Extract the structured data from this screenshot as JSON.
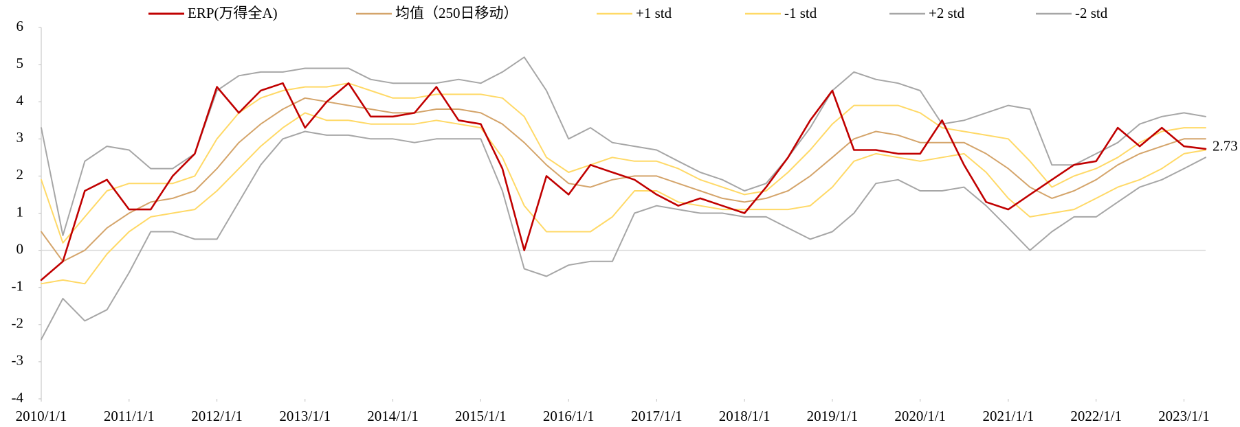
{
  "chart_data": {
    "type": "line",
    "legend": "top",
    "x": [
      "2010/1/1",
      "2010/4/1",
      "2010/7/1",
      "2010/10/1",
      "2011/1/1",
      "2011/4/1",
      "2011/7/1",
      "2011/10/1",
      "2012/1/1",
      "2012/4/1",
      "2012/7/1",
      "2012/10/1",
      "2013/1/1",
      "2013/4/1",
      "2013/7/1",
      "2013/10/1",
      "2014/1/1",
      "2014/4/1",
      "2014/7/1",
      "2014/10/1",
      "2015/1/1",
      "2015/4/1",
      "2015/7/1",
      "2015/10/1",
      "2016/1/1",
      "2016/4/1",
      "2016/7/1",
      "2016/10/1",
      "2017/1/1",
      "2017/4/1",
      "2017/7/1",
      "2017/10/1",
      "2018/1/1",
      "2018/4/1",
      "2018/7/1",
      "2018/10/1",
      "2019/1/1",
      "2019/4/1",
      "2019/7/1",
      "2019/10/1",
      "2020/1/1",
      "2020/4/1",
      "2020/7/1",
      "2020/10/1",
      "2021/1/1",
      "2021/4/1",
      "2021/7/1",
      "2021/10/1",
      "2022/1/1",
      "2022/4/1",
      "2022/7/1",
      "2022/10/1",
      "2023/1/1",
      "2023/4/1"
    ],
    "xlim": [
      "2010/1/1",
      "2023/4/1"
    ],
    "xticks": [
      "2010/1/1",
      "2011/1/1",
      "2012/1/1",
      "2013/1/1",
      "2014/1/1",
      "2015/1/1",
      "2016/1/1",
      "2017/1/1",
      "2018/1/1",
      "2019/1/1",
      "2020/1/1",
      "2021/1/1",
      "2022/1/1",
      "2023/1/1"
    ],
    "ylim": [
      -4,
      6
    ],
    "yticks": [
      -4,
      -3,
      -2,
      -1,
      0,
      1,
      2,
      3,
      4,
      5,
      6
    ],
    "series": [
      {
        "name": "ERP(万得全A)",
        "color": "#C00000",
        "values": [
          -0.8,
          -0.3,
          1.6,
          1.9,
          1.1,
          1.1,
          2.0,
          2.6,
          4.4,
          3.7,
          4.3,
          4.5,
          3.3,
          4.0,
          4.5,
          3.6,
          3.6,
          3.7,
          4.4,
          3.5,
          3.4,
          2.2,
          0.0,
          2.0,
          1.5,
          2.3,
          2.1,
          1.9,
          1.5,
          1.2,
          1.4,
          1.2,
          1.0,
          1.7,
          2.5,
          3.5,
          4.3,
          2.7,
          2.7,
          2.6,
          2.6,
          3.5,
          2.3,
          1.3,
          1.1,
          1.5,
          1.9,
          2.3,
          2.4,
          3.3,
          2.8,
          3.3,
          2.8,
          2.73
        ]
      },
      {
        "name": "均值（250日移动）",
        "color": "#D4A46A",
        "values": [
          0.5,
          -0.3,
          0.0,
          0.6,
          1.0,
          1.3,
          1.4,
          1.6,
          2.2,
          2.9,
          3.4,
          3.8,
          4.1,
          4.0,
          3.9,
          3.8,
          3.7,
          3.7,
          3.8,
          3.8,
          3.7,
          3.4,
          2.9,
          2.3,
          1.8,
          1.7,
          1.9,
          2.0,
          2.0,
          1.8,
          1.6,
          1.4,
          1.3,
          1.4,
          1.6,
          2.0,
          2.5,
          3.0,
          3.2,
          3.1,
          2.9,
          2.9,
          2.9,
          2.6,
          2.2,
          1.7,
          1.4,
          1.6,
          1.9,
          2.3,
          2.6,
          2.8,
          3.0,
          3.0
        ]
      },
      {
        "name": "+1 std",
        "color": "#FFD966",
        "values": [
          1.9,
          0.2,
          0.9,
          1.6,
          1.8,
          1.8,
          1.8,
          2.0,
          3.0,
          3.7,
          4.1,
          4.3,
          4.4,
          4.4,
          4.5,
          4.3,
          4.1,
          4.1,
          4.2,
          4.2,
          4.2,
          4.1,
          3.6,
          2.5,
          2.1,
          2.3,
          2.5,
          2.4,
          2.4,
          2.2,
          1.9,
          1.7,
          1.5,
          1.6,
          2.1,
          2.7,
          3.4,
          3.9,
          3.9,
          3.9,
          3.7,
          3.3,
          3.2,
          3.1,
          3.0,
          2.4,
          1.7,
          2.0,
          2.2,
          2.5,
          2.9,
          3.2,
          3.3,
          3.3
        ]
      },
      {
        "name": "-1 std",
        "color": "#FFD966",
        "values": [
          -0.9,
          -0.8,
          -0.9,
          -0.1,
          0.5,
          0.9,
          1.0,
          1.1,
          1.6,
          2.2,
          2.8,
          3.3,
          3.7,
          3.5,
          3.5,
          3.4,
          3.4,
          3.4,
          3.5,
          3.4,
          3.3,
          2.5,
          1.2,
          0.5,
          0.5,
          0.5,
          0.9,
          1.6,
          1.6,
          1.3,
          1.2,
          1.1,
          1.1,
          1.1,
          1.1,
          1.2,
          1.7,
          2.4,
          2.6,
          2.5,
          2.4,
          2.5,
          2.6,
          2.1,
          1.4,
          0.9,
          1.0,
          1.1,
          1.4,
          1.7,
          1.9,
          2.2,
          2.6,
          2.7
        ]
      },
      {
        "name": "+2 std",
        "color": "#A6A6A6",
        "values": [
          3.3,
          0.4,
          2.4,
          2.8,
          2.7,
          2.2,
          2.2,
          2.6,
          4.3,
          4.7,
          4.8,
          4.8,
          4.9,
          4.9,
          4.9,
          4.6,
          4.5,
          4.5,
          4.5,
          4.6,
          4.5,
          4.8,
          5.2,
          4.3,
          3.0,
          3.3,
          2.9,
          2.8,
          2.7,
          2.4,
          2.1,
          1.9,
          1.6,
          1.8,
          2.5,
          3.3,
          4.3,
          4.8,
          4.6,
          4.5,
          4.3,
          3.4,
          3.5,
          3.7,
          3.9,
          3.8,
          2.3,
          2.3,
          2.6,
          2.9,
          3.4,
          3.6,
          3.7,
          3.6
        ]
      },
      {
        "name": "-2 std",
        "color": "#A6A6A6",
        "values": [
          -2.4,
          -1.3,
          -1.9,
          -1.6,
          -0.6,
          0.5,
          0.5,
          0.3,
          0.3,
          1.3,
          2.3,
          3.0,
          3.2,
          3.1,
          3.1,
          3.0,
          3.0,
          2.9,
          3.0,
          3.0,
          3.0,
          1.6,
          -0.5,
          -0.7,
          -0.4,
          -0.3,
          -0.3,
          1.0,
          1.2,
          1.1,
          1.0,
          1.0,
          0.9,
          0.9,
          0.6,
          0.3,
          0.5,
          1.0,
          1.8,
          1.9,
          1.6,
          1.6,
          1.7,
          1.2,
          0.6,
          0.0,
          0.5,
          0.9,
          0.9,
          1.3,
          1.7,
          1.9,
          2.2,
          2.5
        ]
      }
    ]
  }
}
